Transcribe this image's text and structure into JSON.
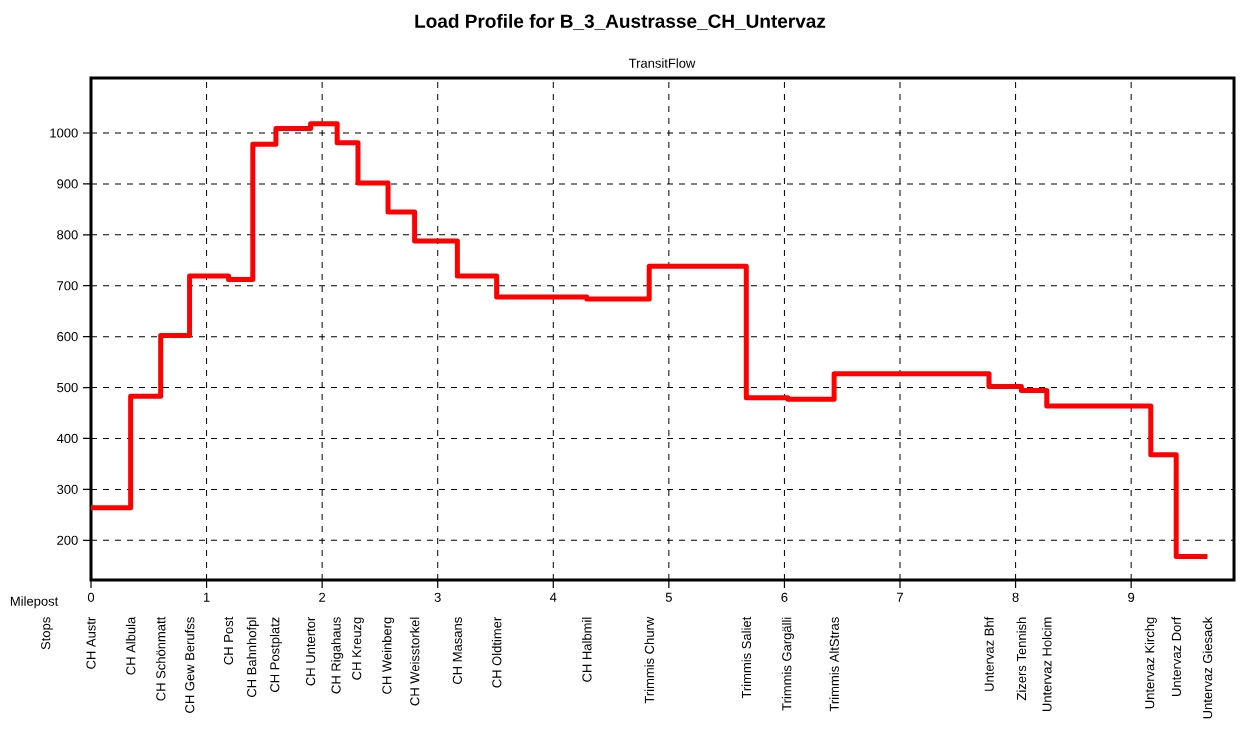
{
  "chart_data": {
    "type": "step",
    "title": "Load Profile for B_3_Austrasse_CH_Untervaz",
    "subtitle": "TransitFlow",
    "xlabel": "Milepost",
    "x": [
      0,
      0.343,
      0.603,
      0.853,
      1.19,
      1.4,
      1.6,
      1.9,
      2.13,
      2.31,
      2.57,
      2.8,
      3.17,
      3.51,
      4.29,
      4.83,
      5.67,
      6.03,
      6.43,
      7.77,
      8.05,
      8.27,
      9.17,
      9.39,
      9.66
    ],
    "series": [
      {
        "color": "#ff0000",
        "values": [
          264,
          483,
          602,
          719,
          712,
          978,
          1009,
          1018,
          981,
          902,
          845,
          788,
          719,
          678,
          674,
          738,
          480,
          477,
          527,
          502,
          494,
          464,
          368,
          168,
          168
        ]
      }
    ],
    "xlim": [
      0,
      9.89
    ],
    "xticks": [
      0,
      1,
      2,
      3,
      4,
      5,
      6,
      7,
      8,
      9
    ],
    "ylim": [
      122,
      1108
    ],
    "yticks": [
      200,
      300,
      400,
      500,
      600,
      700,
      800,
      900,
      1000
    ],
    "annotations": [
      "Stops",
      "CH Austr",
      "CH Albula",
      "CH Schönmatt",
      "CH Gew Berufss",
      "CH Post",
      "CH Bahnhofpl",
      "CH Postplatz",
      "CH Untertor",
      "CH Rigahaus",
      "CH Kreuzg",
      "CH Weinberg",
      "CH Weisstorkel",
      "CH Masans",
      "CH Oldtimer",
      "CH Halbmil",
      "Trimmis Churw",
      "Trimmis Saliet",
      "Trimmis Gargälli",
      "Trimmis AltStras",
      "Untervaz Bhf",
      "Zizers Tennish",
      "Untervaz Holcim",
      "Untervaz Kirchg",
      "Untervaz Dorf",
      "Untervaz Giesack"
    ],
    "grid": true,
    "marker": "none",
    "line_style": "solid"
  }
}
